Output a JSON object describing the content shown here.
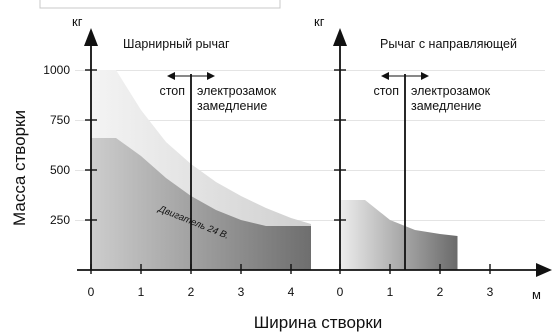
{
  "chart_data": {
    "type": "area",
    "ylabel": "Масса створки",
    "xlabel": "Ширина створки",
    "x_unit": "м",
    "y_unit": "кг",
    "y_ticks": [
      250,
      500,
      750,
      1000
    ],
    "ylim": [
      0,
      1000
    ],
    "panels": [
      {
        "title": "Шарнирный рычаг",
        "x_ticks": [
          0,
          1,
          2,
          3,
          4
        ],
        "xlim": [
          0,
          4.4
        ],
        "series": [
          {
            "color": "#e6e6e6",
            "x": [
              0,
              0.5,
              1,
              1.5,
              2,
              2.5,
              3,
              3.5,
              4,
              4.4
            ],
            "y": [
              1000,
              1000,
              800,
              640,
              530,
              440,
              370,
              310,
              260,
              230
            ]
          },
          {
            "color": "#b9b9b9",
            "x": [
              0,
              0.5,
              1,
              1.5,
              2,
              2.5,
              3,
              3.5,
              4,
              4.4
            ],
            "y": [
              660,
              660,
              570,
              460,
              370,
              300,
              250,
              220,
              220,
              220
            ]
          }
        ],
        "marker": {
          "x": 2,
          "left_label": "стоп",
          "right_label_1": "электрозамок",
          "right_label_2": "замедление"
        },
        "note": "Двигатель 24 В."
      },
      {
        "title": "Рычаг с направляющей",
        "x_ticks": [
          0,
          1,
          2,
          3
        ],
        "xlim": [
          0,
          2.35
        ],
        "series": [
          {
            "color": "#cfcfcf",
            "x": [
              0,
              0.5,
              1,
              1.5,
              2,
              2.35
            ],
            "y": [
              350,
              350,
              250,
              200,
              180,
              170
            ]
          }
        ],
        "marker": {
          "x": 1.3,
          "left_label": "стоп",
          "right_label_1": "электрозамок",
          "right_label_2": "замедление"
        }
      }
    ]
  }
}
